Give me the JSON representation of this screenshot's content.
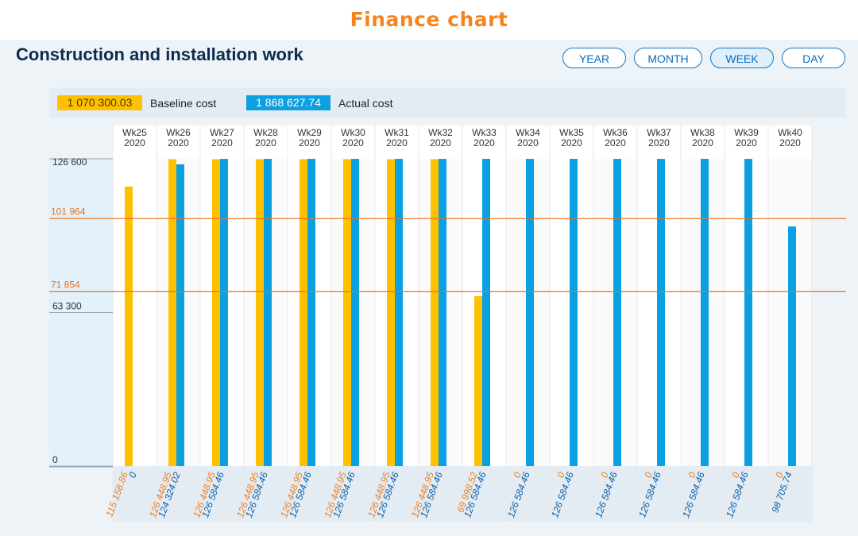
{
  "app_title": "Finance chart",
  "page_title": "Construction and installation work",
  "period_buttons": [
    {
      "label": "YEAR",
      "active": false
    },
    {
      "label": "MONTH",
      "active": false
    },
    {
      "label": "WEEK",
      "active": true
    },
    {
      "label": "DAY",
      "active": false
    }
  ],
  "legend": {
    "baseline": {
      "value": "1 070 300.03",
      "label": "Baseline cost",
      "color": "#ffc000"
    },
    "actual": {
      "value": "1 868 627.74",
      "label": "Actual cost",
      "color": "#0aa0e2"
    }
  },
  "colors": {
    "baseline": "#ffc000",
    "actual": "#0aa0e2",
    "baseline_text": "#f07e1f",
    "actual_text": "#0b5fa8",
    "reference_line": "#e8731f"
  },
  "chart_data": {
    "type": "bar",
    "categories": [
      {
        "week": "Wk25",
        "year": "2020"
      },
      {
        "week": "Wk26",
        "year": "2020"
      },
      {
        "week": "Wk27",
        "year": "2020"
      },
      {
        "week": "Wk28",
        "year": "2020"
      },
      {
        "week": "Wk29",
        "year": "2020"
      },
      {
        "week": "Wk30",
        "year": "2020"
      },
      {
        "week": "Wk31",
        "year": "2020"
      },
      {
        "week": "Wk32",
        "year": "2020"
      },
      {
        "week": "Wk33",
        "year": "2020"
      },
      {
        "week": "Wk34",
        "year": "2020"
      },
      {
        "week": "Wk35",
        "year": "2020"
      },
      {
        "week": "Wk36",
        "year": "2020"
      },
      {
        "week": "Wk37",
        "year": "2020"
      },
      {
        "week": "Wk38",
        "year": "2020"
      },
      {
        "week": "Wk39",
        "year": "2020"
      },
      {
        "week": "Wk40",
        "year": "2020"
      }
    ],
    "series": [
      {
        "name": "Baseline cost",
        "values": [
          115158.86,
          126448.95,
          126448.95,
          126448.95,
          126448.95,
          126448.95,
          126448.95,
          126448.95,
          69998.52,
          0,
          0,
          0,
          0,
          0,
          0,
          0
        ]
      },
      {
        "name": "Actual cost",
        "values": [
          0,
          124324.02,
          126584.46,
          126584.46,
          126584.46,
          126584.46,
          126584.46,
          126584.46,
          126584.46,
          126584.46,
          126584.46,
          126584.46,
          126584.46,
          126584.46,
          126584.46,
          98705.74
        ]
      }
    ],
    "baseline_labels": [
      "115 158.86",
      "126 448.95",
      "126 448.95",
      "126 448.95",
      "126 448.95",
      "126 448.95",
      "126 448.95",
      "126 448.95",
      "69 998.52",
      "0",
      "0",
      "0",
      "0",
      "0",
      "0",
      "0"
    ],
    "actual_labels": [
      "0",
      "124 324.02",
      "126 584.46",
      "126 584.46",
      "126 584.46",
      "126 584.46",
      "126 584.46",
      "126 584.46",
      "126 584.46",
      "126 584.46",
      "126 584.46",
      "126 584.46",
      "126 584.46",
      "126 584.46",
      "126 584.46",
      "98 705.74"
    ],
    "y_ticks": [
      {
        "value": 126600,
        "label": "126 600"
      },
      {
        "value": 63300,
        "label": "63 300"
      },
      {
        "value": 0,
        "label": "0"
      }
    ],
    "reference_lines": [
      {
        "value": 101964,
        "label": "101 964"
      },
      {
        "value": 71854,
        "label": "71 854"
      }
    ],
    "ylim": [
      0,
      126600
    ],
    "grid": false
  }
}
